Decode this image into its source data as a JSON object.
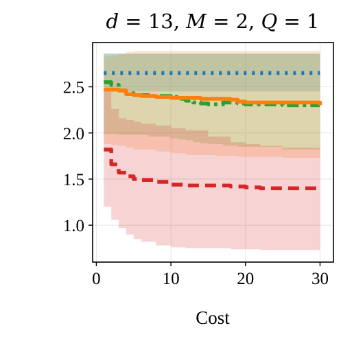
{
  "chart_data": {
    "type": "line",
    "title": "d = 13, M = 2, Q = 1",
    "title_parts": [
      "d",
      " = 13, ",
      "M",
      " = 2, ",
      "Q",
      " = 1"
    ],
    "xlabel": "Cost",
    "ylabel": "",
    "xlim": [
      -0.5,
      31.8
    ],
    "ylim": [
      0.6,
      2.98
    ],
    "xticks": [
      0,
      10,
      20,
      30
    ],
    "xtick_labels": [
      "0",
      "10",
      "20",
      "30"
    ],
    "yticks": [
      1.0,
      1.5,
      2.0,
      2.5
    ],
    "ytick_labels": [
      "1.0",
      "1.5",
      "2.0",
      "2.5"
    ],
    "grid": true,
    "series": [
      {
        "color": "#1f77b4",
        "linestyle": "dotted",
        "x": [
          1,
          30
        ],
        "y": [
          2.65,
          2.65
        ],
        "band_lower": [
          2.45,
          2.45
        ],
        "band_upper": [
          2.86,
          2.86
        ]
      },
      {
        "color": "#2ca02c",
        "linestyle": "dashdot",
        "x": [
          1,
          2,
          3,
          4,
          5,
          7,
          10,
          11,
          12,
          13,
          14,
          15,
          16,
          17,
          18,
          19,
          20,
          22,
          25,
          30
        ],
        "y": [
          2.55,
          2.52,
          2.46,
          2.43,
          2.41,
          2.4,
          2.39,
          2.37,
          2.35,
          2.33,
          2.32,
          2.31,
          2.31,
          2.33,
          2.33,
          2.32,
          2.31,
          2.31,
          2.3,
          2.3
        ],
        "band_lower": [
          1.99,
          1.99,
          1.98,
          1.98,
          1.98,
          1.96,
          1.94,
          1.93,
          1.92,
          1.9,
          1.89,
          1.88,
          1.88,
          1.86,
          1.86,
          1.85,
          1.85,
          1.85,
          1.82,
          1.82
        ],
        "band_upper": [
          2.86,
          2.86,
          2.86,
          2.86,
          2.86,
          2.86,
          2.86,
          2.86,
          2.86,
          2.86,
          2.86,
          2.86,
          2.86,
          2.86,
          2.86,
          2.86,
          2.86,
          2.86,
          2.86,
          2.86
        ]
      },
      {
        "color": "#ff7f0e",
        "linestyle": "solid",
        "x": [
          1,
          2,
          3,
          4,
          5,
          6,
          8,
          10,
          12,
          14,
          16,
          17,
          18,
          19,
          20,
          25,
          29,
          30
        ],
        "y": [
          2.47,
          2.47,
          2.46,
          2.42,
          2.41,
          2.4,
          2.39,
          2.38,
          2.38,
          2.37,
          2.37,
          2.37,
          2.36,
          2.34,
          2.33,
          2.33,
          2.33,
          2.3
        ],
        "band_lower": [
          1.88,
          1.87,
          1.86,
          1.84,
          1.82,
          1.82,
          1.8,
          1.78,
          1.76,
          1.76,
          1.75,
          1.75,
          1.75,
          1.74,
          1.74,
          1.73,
          1.73,
          1.73
        ],
        "band_upper": [
          2.83,
          2.84,
          2.86,
          2.88,
          2.89,
          2.89,
          2.89,
          2.89,
          2.89,
          2.89,
          2.89,
          2.89,
          2.89,
          2.89,
          2.89,
          2.89,
          2.89,
          2.89
        ]
      },
      {
        "color": "#d62728",
        "linestyle": "dashed",
        "x": [
          1,
          2,
          3,
          4,
          5,
          6,
          8,
          10,
          12,
          15,
          18,
          20,
          22,
          25,
          30
        ],
        "y": [
          1.82,
          1.66,
          1.57,
          1.53,
          1.5,
          1.49,
          1.47,
          1.44,
          1.43,
          1.43,
          1.42,
          1.41,
          1.4,
          1.4,
          1.39
        ],
        "band_lower": [
          1.2,
          1.06,
          0.97,
          0.9,
          0.85,
          0.82,
          0.78,
          0.76,
          0.75,
          0.75,
          0.74,
          0.74,
          0.73,
          0.73,
          0.73
        ],
        "band_upper": [
          2.45,
          2.26,
          2.16,
          2.14,
          2.12,
          2.1,
          2.08,
          2.05,
          2.03,
          1.96,
          1.9,
          1.88,
          1.86,
          1.84,
          1.74
        ]
      }
    ]
  }
}
